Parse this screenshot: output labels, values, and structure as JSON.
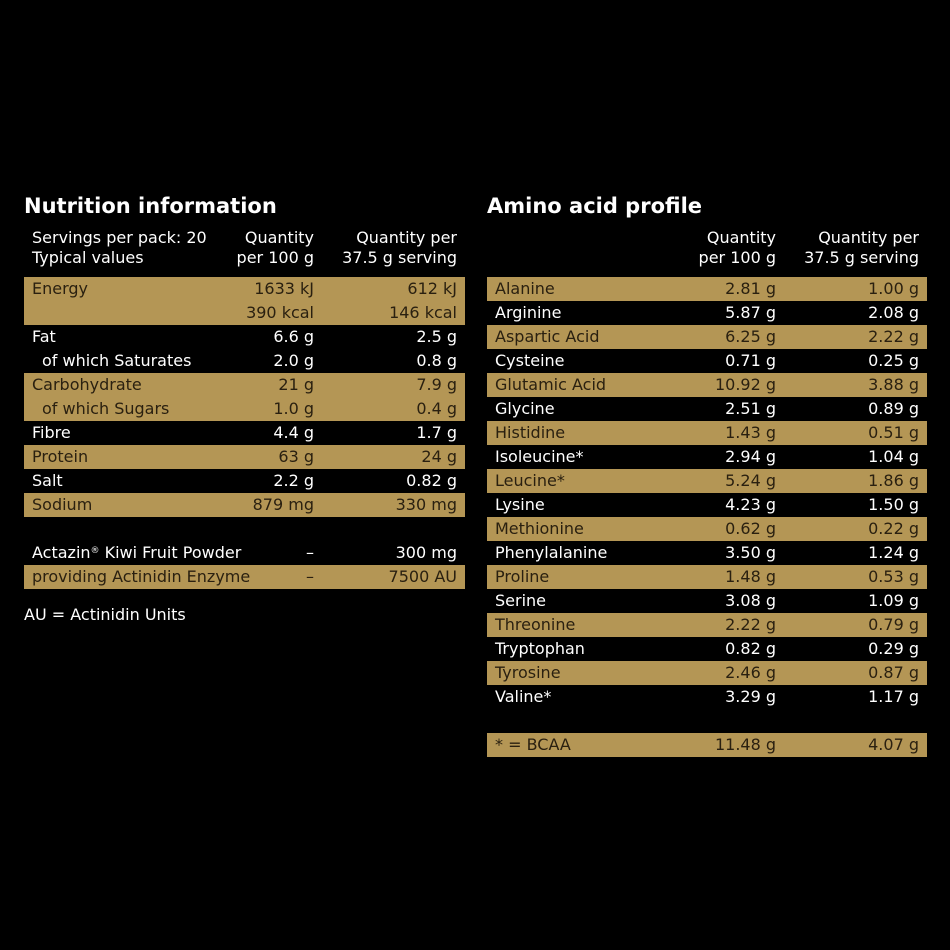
{
  "nutrition": {
    "title": "Nutrition information",
    "header": {
      "col1_line1": "Servings per pack: 20",
      "col1_line2": "Typical values",
      "col2_line1": "Quantity",
      "col2_line2": "per 100 g",
      "col3_line1": "Quantity per",
      "col3_line2": "37.5 g serving"
    },
    "rows": [
      {
        "label": "Energy",
        "per100": "1633 kJ",
        "perServing": "612 kJ"
      },
      {
        "label": "",
        "per100": "390 kcal",
        "perServing": "146 kcal"
      },
      {
        "label": "Fat",
        "per100": "6.6 g",
        "perServing": "2.5 g"
      },
      {
        "label": "of which Saturates",
        "per100": "2.0 g",
        "perServing": "0.8 g"
      },
      {
        "label": "Carbohydrate",
        "per100": "21 g",
        "perServing": "7.9 g"
      },
      {
        "label": "of which Sugars",
        "per100": "1.0 g",
        "perServing": "0.4 g"
      },
      {
        "label": "Fibre",
        "per100": "4.4 g",
        "perServing": "1.7 g"
      },
      {
        "label": "Protein",
        "per100": "63 g",
        "perServing": "24 g"
      },
      {
        "label": "Salt",
        "per100": "2.2 g",
        "perServing": "0.82 g"
      },
      {
        "label": "Sodium",
        "per100": "879 mg",
        "perServing": "330 mg"
      }
    ],
    "extra": [
      {
        "label": "Actazin",
        "mark": "®",
        "label_rest": " Kiwi Fruit Powder",
        "per100": "–",
        "perServing": "300 mg"
      },
      {
        "label": "providing Actinidin Enzyme",
        "per100": "–",
        "perServing": "7500 AU"
      }
    ],
    "note": "AU = Actinidin Units"
  },
  "amino": {
    "title": "Amino acid profile",
    "header": {
      "col2_line1": "Quantity",
      "col2_line2": "per 100 g",
      "col3_line1": "Quantity per",
      "col3_line2": "37.5 g serving"
    },
    "rows": [
      {
        "label": "Alanine",
        "per100": "2.81 g",
        "perServing": "1.00 g"
      },
      {
        "label": "Arginine",
        "per100": "5.87 g",
        "perServing": "2.08 g"
      },
      {
        "label": "Aspartic Acid",
        "per100": "6.25 g",
        "perServing": "2.22 g"
      },
      {
        "label": "Cysteine",
        "per100": "0.71 g",
        "perServing": "0.25 g"
      },
      {
        "label": "Glutamic Acid",
        "per100": "10.92 g",
        "perServing": "3.88 g"
      },
      {
        "label": "Glycine",
        "per100": "2.51 g",
        "perServing": "0.89 g"
      },
      {
        "label": "Histidine",
        "per100": "1.43 g",
        "perServing": "0.51 g"
      },
      {
        "label": "Isoleucine*",
        "per100": "2.94 g",
        "perServing": "1.04 g"
      },
      {
        "label": "Leucine*",
        "per100": "5.24 g",
        "perServing": "1.86 g"
      },
      {
        "label": "Lysine",
        "per100": "4.23 g",
        "perServing": "1.50 g"
      },
      {
        "label": "Methionine",
        "per100": "0.62 g",
        "perServing": "0.22 g"
      },
      {
        "label": "Phenylalanine",
        "per100": "3.50 g",
        "perServing": "1.24 g"
      },
      {
        "label": "Proline",
        "per100": "1.48 g",
        "perServing": "0.53 g"
      },
      {
        "label": "Serine",
        "per100": "3.08 g",
        "perServing": "1.09 g"
      },
      {
        "label": "Threonine",
        "per100": "2.22 g",
        "perServing": "0.79 g"
      },
      {
        "label": "Tryptophan",
        "per100": "0.82 g",
        "perServing": "0.29 g"
      },
      {
        "label": "Tyrosine",
        "per100": "2.46 g",
        "perServing": "0.87 g"
      },
      {
        "label": "Valine*",
        "per100": "3.29 g",
        "perServing": "1.17 g"
      }
    ],
    "total": {
      "label": "* = BCAA",
      "per100": "11.48 g",
      "perServing": "4.07 g"
    }
  },
  "colors": {
    "background": "#000000",
    "gold": "#b49655",
    "text": "#ffffff",
    "goldText": "#2a2010"
  }
}
